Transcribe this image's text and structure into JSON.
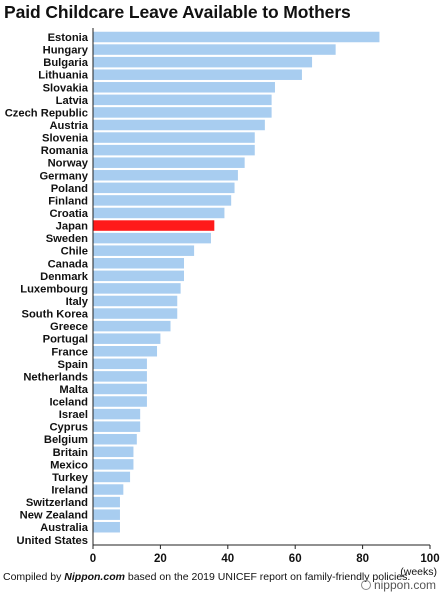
{
  "chart_data": {
    "type": "bar",
    "orientation": "horizontal",
    "title": "Paid Childcare Leave Available to Mothers",
    "xlabel": "(weeks)",
    "ylabel": "",
    "xlim": [
      0,
      100
    ],
    "xticks": [
      0,
      20,
      40,
      60,
      80,
      100
    ],
    "grid": false,
    "legend": "none",
    "bar_color": "#a8cdf0",
    "highlight_color": "#ff1a1a",
    "highlight_category": "Japan",
    "categories": [
      "Estonia",
      "Hungary",
      "Bulgaria",
      "Lithuania",
      "Slovakia",
      "Latvia",
      "Czech Republic",
      "Austria",
      "Slovenia",
      "Romania",
      "Norway",
      "Germany",
      "Poland",
      "Finland",
      "Croatia",
      "Japan",
      "Sweden",
      "Chile",
      "Canada",
      "Denmark",
      "Luxembourg",
      "Italy",
      "South Korea",
      "Greece",
      "Portugal",
      "France",
      "Spain",
      "Netherlands",
      "Malta",
      "Iceland",
      "Israel",
      "Cyprus",
      "Belgium",
      "Britain",
      "Mexico",
      "Turkey",
      "Ireland",
      "Switzerland",
      "New Zealand",
      "Australia",
      "United States"
    ],
    "values": [
      85,
      72,
      65,
      62,
      54,
      53,
      53,
      51,
      48,
      48,
      45,
      43,
      42,
      41,
      39,
      36,
      35,
      30,
      27,
      27,
      26,
      25,
      25,
      23,
      20,
      19,
      16,
      16,
      16,
      16,
      14,
      14,
      13,
      12,
      12,
      11,
      9,
      8,
      8,
      8,
      0
    ]
  },
  "footer": {
    "prefix": "Compiled by ",
    "source": "Nippon.com",
    "suffix": " based on the 2019 UNICEF report on family-friendly policies."
  },
  "brand": "nippon.com"
}
